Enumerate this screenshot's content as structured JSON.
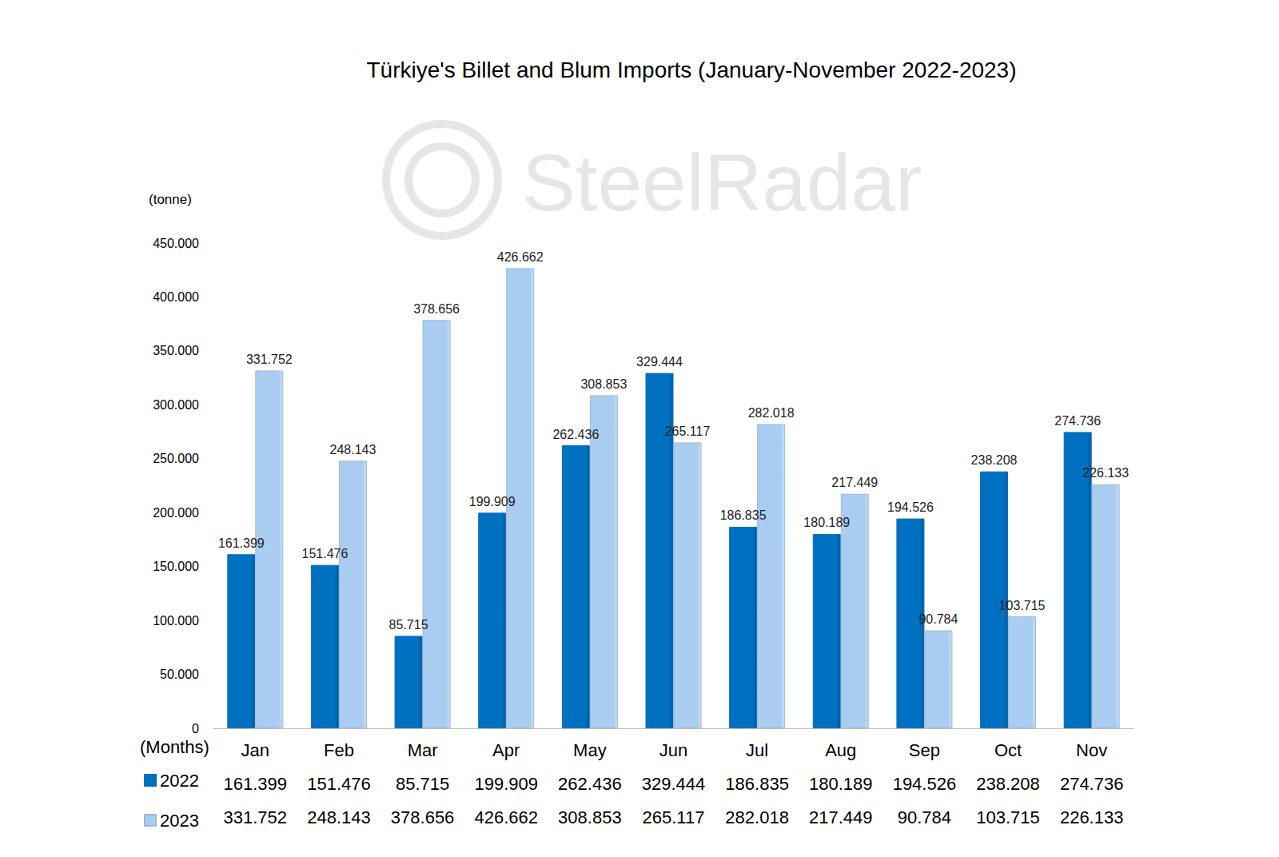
{
  "chart_data": {
    "type": "bar",
    "title": "Türkiye's Billet and Blum Imports (January-November 2022-2023)",
    "y_label": "(tonne)",
    "x_label": "(Months)",
    "watermark": "SteelRadar",
    "categories": [
      "Jan",
      "Feb",
      "Mar",
      "Apr",
      "May",
      "Jun",
      "Jul",
      "Aug",
      "Sep",
      "Oct",
      "Nov"
    ],
    "series": [
      {
        "name": "2022",
        "color": "#0070c0",
        "values": [
          161399,
          151476,
          85715,
          199909,
          262436,
          329444,
          186835,
          180189,
          194526,
          238208,
          274736
        ],
        "value_labels": [
          "161.399",
          "151.476",
          "85.715",
          "199.909",
          "262.436",
          "329.444",
          "186.835",
          "180.189",
          "194.526",
          "238.208",
          "274.736"
        ]
      },
      {
        "name": "2023",
        "color": "#a9cdf0",
        "values": [
          331752,
          248143,
          378656,
          426662,
          308853,
          265117,
          282018,
          217449,
          90784,
          103715,
          226133
        ],
        "value_labels": [
          "331.752",
          "248.143",
          "378.656",
          "426.662",
          "308.853",
          "265.117",
          "282.018",
          "217.449",
          "90.784",
          "103.715",
          "226.133"
        ]
      }
    ],
    "ylim": [
      0,
      450000
    ],
    "yticks": [
      0,
      {
        "value": 50000,
        "label": "50.000"
      },
      {
        "value": 100000,
        "label": "100.000"
      },
      {
        "value": 150000,
        "label": "150.000"
      },
      {
        "value": 200000,
        "label": "200.000"
      },
      {
        "value": 250000,
        "label": "250.000"
      },
      {
        "value": 300000,
        "label": "300.000"
      },
      {
        "value": 350000,
        "label": "350.000"
      },
      {
        "value": 400000,
        "label": "400.000"
      },
      {
        "value": 450000,
        "label": "450.000"
      }
    ],
    "grid": false,
    "legend": "bottom-left",
    "data_labels": true
  }
}
